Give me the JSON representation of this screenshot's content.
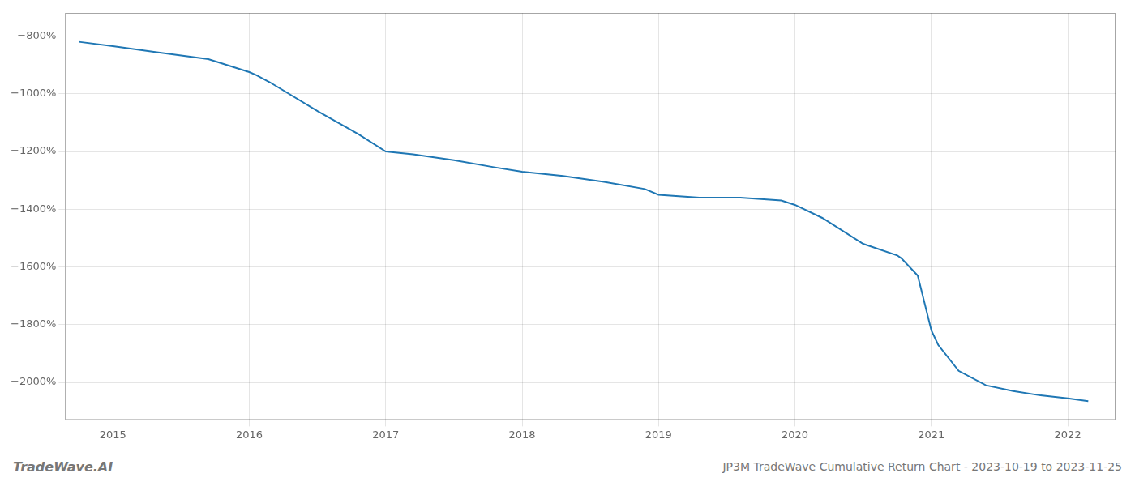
{
  "chart_data": {
    "type": "line",
    "title": "JP3M TradeWave Cumulative Return Chart - 2023-10-19 to 2023-11-25",
    "annotations": [
      "TradeWave.AI"
    ],
    "x": [
      2014.75,
      2015.0,
      2015.3,
      2015.7,
      2016.0,
      2016.05,
      2016.15,
      2016.5,
      2016.8,
      2017.0,
      2017.2,
      2017.5,
      2017.8,
      2018.0,
      2018.3,
      2018.6,
      2018.9,
      2019.0,
      2019.3,
      2019.6,
      2019.9,
      2020.0,
      2020.2,
      2020.5,
      2020.75,
      2020.78,
      2020.9,
      2021.0,
      2021.05,
      2021.2,
      2021.4,
      2021.6,
      2021.8,
      2022.0,
      2022.15
    ],
    "values": [
      -820,
      -835,
      -855,
      -880,
      -925,
      -935,
      -960,
      -1060,
      -1140,
      -1200,
      -1210,
      -1230,
      -1255,
      -1270,
      -1285,
      -1305,
      -1330,
      -1350,
      -1360,
      -1360,
      -1370,
      -1385,
      -1430,
      -1520,
      -1560,
      -1570,
      -1630,
      -1820,
      -1870,
      -1960,
      -2010,
      -2030,
      -2045,
      -2055,
      -2065
    ],
    "color": "#1f77b4",
    "xlim": [
      2014.65,
      2022.35
    ],
    "ylim": [
      -2130,
      -720
    ],
    "xticks": [
      2015,
      2016,
      2017,
      2018,
      2019,
      2020,
      2021,
      2022
    ],
    "yticks": [
      {
        "value": -800,
        "label": "−800%"
      },
      {
        "value": -1000,
        "label": "−1000%"
      },
      {
        "value": -1200,
        "label": "−1200%"
      },
      {
        "value": -1400,
        "label": "−1400%"
      },
      {
        "value": -1600,
        "label": "−1600%"
      },
      {
        "value": -1800,
        "label": "−1800%"
      },
      {
        "value": -2000,
        "label": "−2000%"
      }
    ],
    "grid": true
  }
}
